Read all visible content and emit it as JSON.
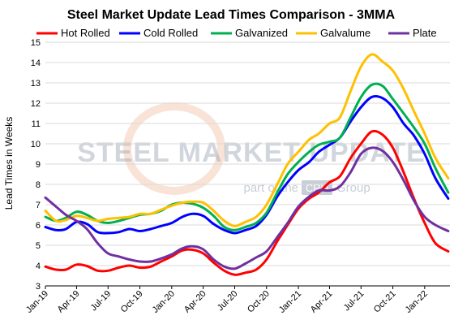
{
  "chart_data": {
    "type": "line",
    "title": "Steel Market Update Lead Times Comparison - 3MMA",
    "ylabel": "Lead Times in Weeks",
    "xlabel": "",
    "ylim": [
      3,
      15
    ],
    "yticks": [
      "3",
      "4",
      "5",
      "6",
      "7",
      "8",
      "9",
      "10",
      "11",
      "12",
      "13",
      "14",
      "15"
    ],
    "xlim": [
      "2019-01-01",
      "2022-03-15"
    ],
    "xticks": [
      {
        "label": "Jan-19",
        "date": "2019-01-01"
      },
      {
        "label": "Apr-19",
        "date": "2019-04-01"
      },
      {
        "label": "Jul-19",
        "date": "2019-07-01"
      },
      {
        "label": "Oct-19",
        "date": "2019-10-01"
      },
      {
        "label": "Jan-20",
        "date": "2020-01-01"
      },
      {
        "label": "Apr-20",
        "date": "2020-04-01"
      },
      {
        "label": "Jul-20",
        "date": "2020-07-01"
      },
      {
        "label": "Oct-20",
        "date": "2020-10-01"
      },
      {
        "label": "Jan-21",
        "date": "2021-01-01"
      },
      {
        "label": "Apr-21",
        "date": "2021-04-01"
      },
      {
        "label": "Jul-21",
        "date": "2021-07-01"
      },
      {
        "label": "Oct-21",
        "date": "2021-10-01"
      },
      {
        "label": "Jan-22",
        "date": "2022-01-01"
      }
    ],
    "grid": "horizontal",
    "legend_position": "top",
    "watermark": {
      "brand": "STEEL MARKET UPDATE",
      "tagline_before": "part of the",
      "tagline_box": "CRU",
      "tagline_after": "Group"
    },
    "series": [
      {
        "name": "Hot Rolled",
        "color": "#ff0000",
        "points": [
          [
            "2019-01-01",
            3.95
          ],
          [
            "2019-02-01",
            3.8
          ],
          [
            "2019-03-01",
            3.8
          ],
          [
            "2019-04-01",
            4.05
          ],
          [
            "2019-05-01",
            3.98
          ],
          [
            "2019-06-01",
            3.75
          ],
          [
            "2019-07-01",
            3.75
          ],
          [
            "2019-08-01",
            3.9
          ],
          [
            "2019-09-01",
            4.0
          ],
          [
            "2019-10-01",
            3.9
          ],
          [
            "2019-11-01",
            3.95
          ],
          [
            "2019-12-01",
            4.2
          ],
          [
            "2020-01-01",
            4.45
          ],
          [
            "2020-02-01",
            4.75
          ],
          [
            "2020-03-01",
            4.78
          ],
          [
            "2020-04-01",
            4.6
          ],
          [
            "2020-05-01",
            4.15
          ],
          [
            "2020-06-01",
            3.75
          ],
          [
            "2020-07-01",
            3.55
          ],
          [
            "2020-08-01",
            3.65
          ],
          [
            "2020-09-01",
            3.8
          ],
          [
            "2020-10-01",
            4.3
          ],
          [
            "2020-11-01",
            5.2
          ],
          [
            "2020-12-01",
            6.0
          ],
          [
            "2021-01-01",
            6.8
          ],
          [
            "2021-02-01",
            7.3
          ],
          [
            "2021-03-01",
            7.6
          ],
          [
            "2021-04-01",
            8.1
          ],
          [
            "2021-05-01",
            8.4
          ],
          [
            "2021-06-01",
            9.3
          ],
          [
            "2021-07-01",
            10.0
          ],
          [
            "2021-08-01",
            10.6
          ],
          [
            "2021-09-01",
            10.45
          ],
          [
            "2021-10-01",
            9.8
          ],
          [
            "2021-11-01",
            8.6
          ],
          [
            "2021-12-01",
            7.3
          ],
          [
            "2022-01-01",
            6.1
          ],
          [
            "2022-02-01",
            5.1
          ],
          [
            "2022-03-10",
            4.7
          ]
        ]
      },
      {
        "name": "Cold Rolled",
        "color": "#0000ff",
        "points": [
          [
            "2019-01-01",
            5.9
          ],
          [
            "2019-02-01",
            5.75
          ],
          [
            "2019-03-01",
            5.8
          ],
          [
            "2019-04-01",
            6.15
          ],
          [
            "2019-05-01",
            6.05
          ],
          [
            "2019-06-01",
            5.65
          ],
          [
            "2019-07-01",
            5.6
          ],
          [
            "2019-08-01",
            5.65
          ],
          [
            "2019-09-01",
            5.8
          ],
          [
            "2019-10-01",
            5.7
          ],
          [
            "2019-11-01",
            5.8
          ],
          [
            "2019-12-01",
            5.95
          ],
          [
            "2020-01-01",
            6.1
          ],
          [
            "2020-02-01",
            6.4
          ],
          [
            "2020-03-01",
            6.55
          ],
          [
            "2020-04-01",
            6.45
          ],
          [
            "2020-05-01",
            6.05
          ],
          [
            "2020-06-01",
            5.75
          ],
          [
            "2020-07-01",
            5.6
          ],
          [
            "2020-08-01",
            5.75
          ],
          [
            "2020-09-01",
            5.95
          ],
          [
            "2020-10-01",
            6.5
          ],
          [
            "2020-11-01",
            7.4
          ],
          [
            "2020-12-01",
            8.1
          ],
          [
            "2021-01-01",
            8.7
          ],
          [
            "2021-02-01",
            9.1
          ],
          [
            "2021-03-01",
            9.6
          ],
          [
            "2021-04-01",
            9.95
          ],
          [
            "2021-05-01",
            10.3
          ],
          [
            "2021-06-01",
            11.1
          ],
          [
            "2021-07-01",
            11.8
          ],
          [
            "2021-08-01",
            12.3
          ],
          [
            "2021-09-01",
            12.25
          ],
          [
            "2021-10-01",
            11.8
          ],
          [
            "2021-11-01",
            11.0
          ],
          [
            "2021-12-01",
            10.4
          ],
          [
            "2022-01-01",
            9.5
          ],
          [
            "2022-02-01",
            8.3
          ],
          [
            "2022-03-10",
            7.3
          ]
        ]
      },
      {
        "name": "Galvanized",
        "color": "#00b050",
        "points": [
          [
            "2019-01-01",
            6.4
          ],
          [
            "2019-02-01",
            6.2
          ],
          [
            "2019-03-01",
            6.35
          ],
          [
            "2019-04-01",
            6.65
          ],
          [
            "2019-05-01",
            6.5
          ],
          [
            "2019-06-01",
            6.2
          ],
          [
            "2019-07-01",
            6.1
          ],
          [
            "2019-08-01",
            6.2
          ],
          [
            "2019-09-01",
            6.35
          ],
          [
            "2019-10-01",
            6.5
          ],
          [
            "2019-11-01",
            6.55
          ],
          [
            "2019-12-01",
            6.7
          ],
          [
            "2020-01-01",
            7.0
          ],
          [
            "2020-02-01",
            7.1
          ],
          [
            "2020-03-01",
            7.05
          ],
          [
            "2020-04-01",
            6.85
          ],
          [
            "2020-05-01",
            6.45
          ],
          [
            "2020-06-01",
            5.9
          ],
          [
            "2020-07-01",
            5.75
          ],
          [
            "2020-08-01",
            5.9
          ],
          [
            "2020-09-01",
            6.1
          ],
          [
            "2020-10-01",
            6.6
          ],
          [
            "2020-11-01",
            7.6
          ],
          [
            "2020-12-01",
            8.5
          ],
          [
            "2021-01-01",
            9.1
          ],
          [
            "2021-02-01",
            9.6
          ],
          [
            "2021-03-01",
            9.95
          ],
          [
            "2021-04-01",
            10.1
          ],
          [
            "2021-05-01",
            10.3
          ],
          [
            "2021-06-01",
            11.3
          ],
          [
            "2021-07-01",
            12.3
          ],
          [
            "2021-08-01",
            12.9
          ],
          [
            "2021-09-01",
            12.85
          ],
          [
            "2021-10-01",
            12.2
          ],
          [
            "2021-11-01",
            11.5
          ],
          [
            "2021-12-01",
            10.8
          ],
          [
            "2022-01-01",
            10.0
          ],
          [
            "2022-02-01",
            8.8
          ],
          [
            "2022-03-10",
            7.6
          ]
        ]
      },
      {
        "name": "Galvalume",
        "color": "#ffc000",
        "points": [
          [
            "2019-01-01",
            6.7
          ],
          [
            "2019-02-01",
            6.2
          ],
          [
            "2019-03-01",
            6.25
          ],
          [
            "2019-04-01",
            6.45
          ],
          [
            "2019-05-01",
            6.35
          ],
          [
            "2019-06-01",
            6.2
          ],
          [
            "2019-07-01",
            6.3
          ],
          [
            "2019-08-01",
            6.35
          ],
          [
            "2019-09-01",
            6.4
          ],
          [
            "2019-10-01",
            6.55
          ],
          [
            "2019-11-01",
            6.55
          ],
          [
            "2019-12-01",
            6.75
          ],
          [
            "2020-01-01",
            6.95
          ],
          [
            "2020-02-01",
            7.1
          ],
          [
            "2020-03-01",
            7.15
          ],
          [
            "2020-04-01",
            7.1
          ],
          [
            "2020-05-01",
            6.7
          ],
          [
            "2020-06-01",
            6.2
          ],
          [
            "2020-07-01",
            5.95
          ],
          [
            "2020-08-01",
            6.15
          ],
          [
            "2020-09-01",
            6.4
          ],
          [
            "2020-10-01",
            7.0
          ],
          [
            "2020-11-01",
            8.0
          ],
          [
            "2020-12-01",
            9.0
          ],
          [
            "2021-01-01",
            9.6
          ],
          [
            "2021-02-01",
            10.2
          ],
          [
            "2021-03-01",
            10.5
          ],
          [
            "2021-04-01",
            11.0
          ],
          [
            "2021-05-01",
            11.3
          ],
          [
            "2021-06-01",
            12.6
          ],
          [
            "2021-07-01",
            13.8
          ],
          [
            "2021-08-01",
            14.4
          ],
          [
            "2021-09-01",
            14.05
          ],
          [
            "2021-10-01",
            13.6
          ],
          [
            "2021-11-01",
            12.7
          ],
          [
            "2021-12-01",
            11.6
          ],
          [
            "2022-01-01",
            10.5
          ],
          [
            "2022-02-01",
            9.3
          ],
          [
            "2022-03-10",
            8.3
          ]
        ]
      },
      {
        "name": "Plate",
        "color": "#7030a0",
        "points": [
          [
            "2019-01-01",
            7.35
          ],
          [
            "2019-02-01",
            6.9
          ],
          [
            "2019-03-01",
            6.5
          ],
          [
            "2019-04-01",
            6.2
          ],
          [
            "2019-05-01",
            5.8
          ],
          [
            "2019-06-01",
            5.1
          ],
          [
            "2019-07-01",
            4.6
          ],
          [
            "2019-08-01",
            4.45
          ],
          [
            "2019-09-01",
            4.3
          ],
          [
            "2019-10-01",
            4.2
          ],
          [
            "2019-11-01",
            4.2
          ],
          [
            "2019-12-01",
            4.35
          ],
          [
            "2020-01-01",
            4.55
          ],
          [
            "2020-02-01",
            4.85
          ],
          [
            "2020-03-01",
            4.95
          ],
          [
            "2020-04-01",
            4.8
          ],
          [
            "2020-05-01",
            4.3
          ],
          [
            "2020-06-01",
            3.95
          ],
          [
            "2020-07-01",
            3.85
          ],
          [
            "2020-08-01",
            4.1
          ],
          [
            "2020-09-01",
            4.4
          ],
          [
            "2020-10-01",
            4.7
          ],
          [
            "2020-11-01",
            5.4
          ],
          [
            "2020-12-01",
            6.1
          ],
          [
            "2021-01-01",
            6.9
          ],
          [
            "2021-02-01",
            7.4
          ],
          [
            "2021-03-01",
            7.7
          ],
          [
            "2021-04-01",
            7.7
          ],
          [
            "2021-05-01",
            7.9
          ],
          [
            "2021-06-01",
            8.6
          ],
          [
            "2021-07-01",
            9.5
          ],
          [
            "2021-08-01",
            9.8
          ],
          [
            "2021-09-01",
            9.65
          ],
          [
            "2021-10-01",
            9.1
          ],
          [
            "2021-11-01",
            8.2
          ],
          [
            "2021-12-01",
            7.2
          ],
          [
            "2022-01-01",
            6.4
          ],
          [
            "2022-02-01",
            6.0
          ],
          [
            "2022-03-10",
            5.7
          ]
        ]
      }
    ]
  }
}
